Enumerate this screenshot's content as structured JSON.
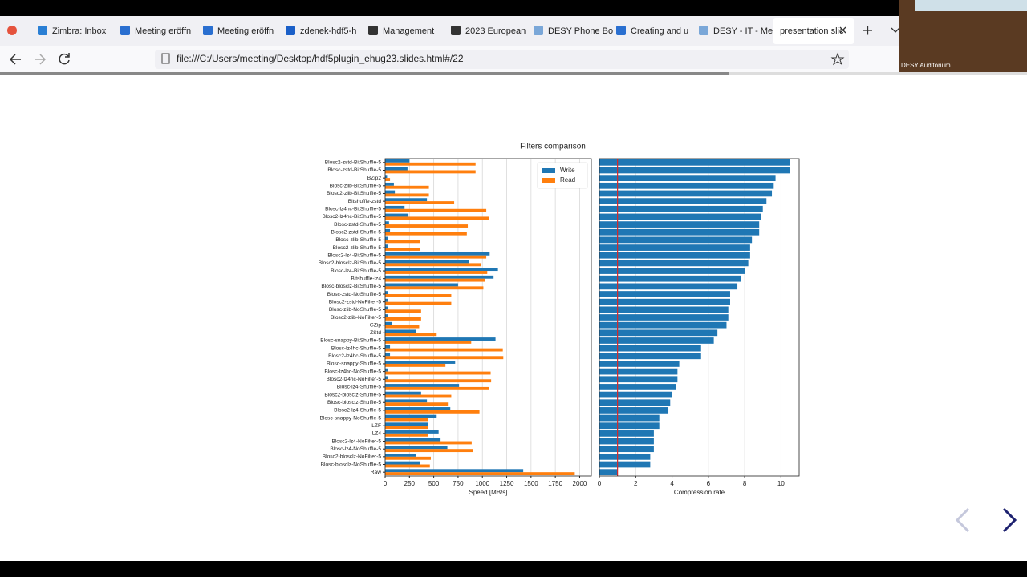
{
  "browser": {
    "tabs": [
      "Zimbra: Inbox",
      "Meeting eröffn",
      "Meeting eröffn",
      "zdenek-hdf5-h",
      "Management",
      "2023 European",
      "DESY Phone Bo",
      "Creating and u",
      "DESY - IT - Me",
      "presentation slic"
    ],
    "url": "file:///C:/Users/meeting/Desktop/hdf5plugin_ehug23.slides.html#/22"
  },
  "video": {
    "label": "DESY Auditorium"
  },
  "chart_data": [
    {
      "type": "bar",
      "orientation": "horizontal",
      "title": "Filters comparison",
      "x_label": "Speed [MB/s]",
      "categories": [
        "Blosc2-zstd-BitShuffle-5",
        "Blosc-zstd-BitShuffle-5",
        "BZip2",
        "Blosc-zlib-BitShuffle-5",
        "Blosc2-zlib-BitShuffle-5",
        "Bitshuffle-zstd",
        "Blosc-lz4hc-BitShuffle-5",
        "Blosc2-lz4hc-BitShuffle-5",
        "Blosc-zstd-Shuffle-5",
        "Blosc2-zstd-Shuffle-5",
        "Blosc-zlib-Shuffle-5",
        "Blosc2-zlib-Shuffle-5",
        "Blosc2-lz4-BitShuffle-5",
        "Blosc2-blosclz-BitShuffle-5",
        "Blosc-lz4-BitShuffle-5",
        "Bitshuffle-lz4",
        "Blosc-blosclz-BitShuffle-5",
        "Blosc-zstd-NoShuffle-5",
        "Blosc2-zstd-NoFilter-5",
        "Blosc-zlib-NoShuffle-5",
        "Blosc2-zlib-NoFilter-5",
        "GZip",
        "ZStd",
        "Blosc-snappy-BitShuffle-5",
        "Blosc-lz4hc-Shuffle-5",
        "Blosc2-lz4hc-Shuffle-5",
        "Blosc-snappy-Shuffle-5",
        "Blosc-lz4hc-NoShuffle-5",
        "Blosc2-lz4hc-NoFilter-5",
        "Blosc-lz4-Shuffle-5",
        "Blosc2-blosclz-Shuffle-5",
        "Blosc-blosclz-Shuffle-5",
        "Blosc2-lz4-Shuffle-5",
        "Blosc-snappy-NoShuffle-5",
        "LZF",
        "LZ4",
        "Blosc2-lz4-NoFilter-5",
        "Blosc-lz4-NoShuffle-5",
        "Blosc2-blosclz-NoFilter-5",
        "Blosc-blosclz-NoShuffle-5",
        "Raw"
      ],
      "series": [
        {
          "name": "Write",
          "color": "#1f77b4",
          "values": [
            250,
            230,
            20,
            90,
            100,
            430,
            200,
            240,
            40,
            50,
            30,
            30,
            1075,
            860,
            1160,
            1115,
            750,
            30,
            30,
            30,
            30,
            70,
            320,
            1135,
            50,
            50,
            720,
            30,
            30,
            760,
            370,
            430,
            670,
            530,
            440,
            550,
            570,
            640,
            315,
            355,
            1420
          ]
        },
        {
          "name": "Read",
          "color": "#ff7f0e",
          "values": [
            930,
            930,
            50,
            450,
            450,
            710,
            1040,
            1070,
            850,
            840,
            355,
            355,
            1040,
            990,
            1050,
            1030,
            1010,
            680,
            680,
            370,
            370,
            350,
            530,
            885,
            1210,
            1215,
            620,
            1085,
            1090,
            1070,
            680,
            645,
            970,
            440,
            440,
            440,
            890,
            900,
            470,
            460,
            1950
          ]
        }
      ],
      "xlim": [
        0,
        2120
      ],
      "xticks": [
        0,
        250,
        500,
        750,
        1000,
        1250,
        1500,
        1750,
        2000
      ],
      "grid": true,
      "legend": "upper right"
    },
    {
      "type": "bar",
      "orientation": "horizontal",
      "x_label": "Compression rate",
      "series": [
        {
          "color": "#1f77b4",
          "values": [
            10.5,
            10.5,
            9.7,
            9.6,
            9.5,
            9.2,
            9.0,
            8.9,
            8.8,
            8.8,
            8.4,
            8.3,
            8.3,
            8.2,
            8.0,
            7.8,
            7.6,
            7.2,
            7.2,
            7.1,
            7.1,
            7.0,
            6.5,
            6.3,
            5.6,
            5.6,
            4.4,
            4.3,
            4.3,
            4.2,
            4.0,
            3.9,
            3.8,
            3.3,
            3.3,
            3.0,
            3.0,
            3.0,
            2.8,
            2.8,
            1.0
          ]
        }
      ],
      "xlim": [
        0,
        11
      ],
      "xticks": [
        0,
        2,
        4,
        6,
        8,
        10
      ],
      "grid": true,
      "reference_line": {
        "value": 1,
        "color": "#d62728"
      }
    }
  ]
}
